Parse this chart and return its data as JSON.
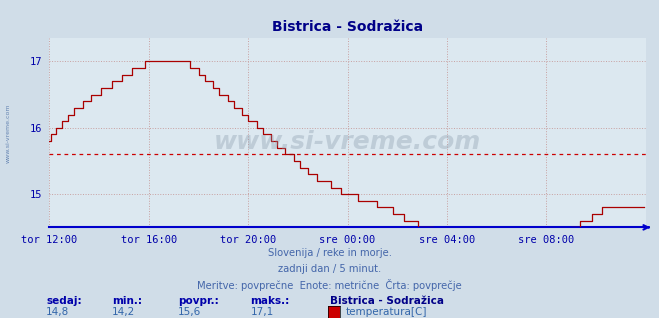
{
  "title": "Bistrica - Sodražica",
  "bg_color": "#d0dde8",
  "plot_bg_color": "#dce8f0",
  "line_color": "#aa0000",
  "avg_line_color": "#cc0000",
  "avg_value": 15.6,
  "y_ticks": [
    15,
    16,
    17
  ],
  "y_display_min": 14.5,
  "y_display_max": 17.35,
  "grid_color": "#c8a0a0",
  "axis_color": "#0000cc",
  "tick_color": "#0000aa",
  "title_color": "#000088",
  "watermark": "www.si-vreme.com",
  "subtitle_lines": [
    "Slovenija / reke in morje.",
    "zadnji dan / 5 minut.",
    "Meritve: povprečne  Enote: metrične  Črta: povprečje"
  ],
  "legend_labels": [
    "sedaj:",
    "min.:",
    "povpr.:",
    "maks.:"
  ],
  "legend_vals": [
    "14,8",
    "14,2",
    "15,6",
    "17,1"
  ],
  "legend_series_name": "Bistrica - Sodražica",
  "legend_series_label": "temperatura[C]",
  "legend_color": "#cc0000",
  "x_tick_labels": [
    "tor 12:00",
    "tor 16:00",
    "tor 20:00",
    "sre 00:00",
    "sre 04:00",
    "sre 08:00"
  ],
  "x_tick_positions": [
    0,
    48,
    96,
    144,
    192,
    240
  ],
  "total_points": 288
}
